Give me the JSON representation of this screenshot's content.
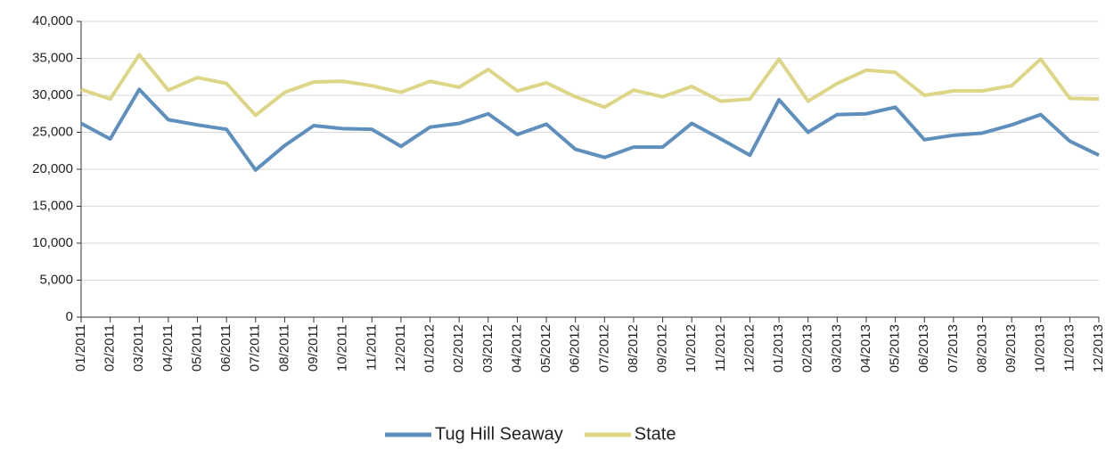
{
  "chart_data": {
    "type": "line",
    "categories": [
      "01/2011",
      "02/2011",
      "03/2011",
      "04/2011",
      "05/2011",
      "06/2011",
      "07/2011",
      "08/2011",
      "09/2011",
      "10/2011",
      "11/2011",
      "12/2011",
      "01/2012",
      "02/2012",
      "03/2012",
      "04/2012",
      "05/2012",
      "06/2012",
      "07/2012",
      "08/2012",
      "09/2012",
      "10/2012",
      "11/2012",
      "12/2012",
      "01/2013",
      "02/2013",
      "03/2013",
      "04/2013",
      "05/2013",
      "06/2013",
      "07/2013",
      "08/2013",
      "09/2013",
      "10/2013",
      "11/2013",
      "12/2013"
    ],
    "series": [
      {
        "name": "Tug Hill Seaway",
        "color": "#5e8fbd",
        "values": [
          26200,
          24100,
          30800,
          26700,
          26000,
          25400,
          19900,
          23200,
          25900,
          25500,
          25400,
          23100,
          25700,
          26200,
          27500,
          24700,
          26100,
          22700,
          21600,
          23000,
          23000,
          26200,
          24100,
          21900,
          29400,
          25000,
          27400,
          27500,
          28400,
          24000,
          24600,
          24900,
          26000,
          27400,
          23800,
          21900
        ]
      },
      {
        "name": "State",
        "color": "#dcd686",
        "values": [
          30800,
          29500,
          35500,
          30700,
          32400,
          31600,
          27300,
          30400,
          31800,
          31900,
          31300,
          30400,
          31900,
          31100,
          33500,
          30600,
          31700,
          29800,
          28400,
          30700,
          29800,
          31200,
          29200,
          29500,
          34900,
          29200,
          31600,
          33400,
          33100,
          30000,
          30600,
          30600,
          31300,
          34900,
          29600,
          29500
        ]
      }
    ],
    "ylim": [
      0,
      40000
    ],
    "yticks": [
      0,
      {
        "value": 5000,
        "label": "5,000"
      },
      {
        "value": 10000,
        "label": "10,000"
      },
      {
        "value": 15000,
        "label": "15,000"
      },
      {
        "value": 20000,
        "label": "20,000"
      },
      {
        "value": 25000,
        "label": "25,000"
      },
      {
        "value": 30000,
        "label": "30,000"
      },
      {
        "value": 35000,
        "label": "35,000"
      },
      {
        "value": 40000,
        "label": "40,000"
      }
    ],
    "grid": true,
    "legend": "bottom"
  }
}
